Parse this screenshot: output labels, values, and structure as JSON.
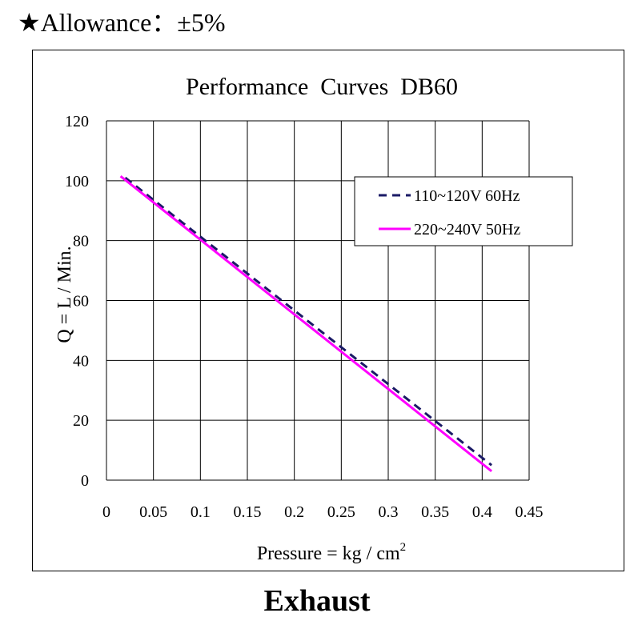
{
  "header": {
    "star": "★",
    "text": "Allowance：±5%"
  },
  "footer": {
    "label": "Exhaust"
  },
  "chart_data": {
    "type": "line",
    "title": "Performance  Curves  DB60",
    "xlabel": "Pressure = kg / cm",
    "xlabel_superscript": "2",
    "ylabel": "Q = L / Min.",
    "xlim": [
      0,
      0.45
    ],
    "ylim": [
      0,
      120
    ],
    "x_ticks": [
      "0",
      "0.05",
      "0.1",
      "0.15",
      "0.2",
      "0.25",
      "0.3",
      "0.35",
      "0.4",
      "0.45"
    ],
    "y_ticks": [
      "0",
      "20",
      "40",
      "60",
      "80",
      "100",
      "120"
    ],
    "grid": true,
    "legend_position": "top-right",
    "series": [
      {
        "name": "110~120V 60Hz",
        "color": "#1a1a66",
        "style": "dashed",
        "points": [
          [
            0.02,
            101
          ],
          [
            0.41,
            5
          ]
        ]
      },
      {
        "name": "220~240V 50Hz",
        "color": "#ff00ff",
        "style": "solid",
        "points": [
          [
            0.015,
            101.5
          ],
          [
            0.41,
            3
          ]
        ]
      }
    ]
  }
}
